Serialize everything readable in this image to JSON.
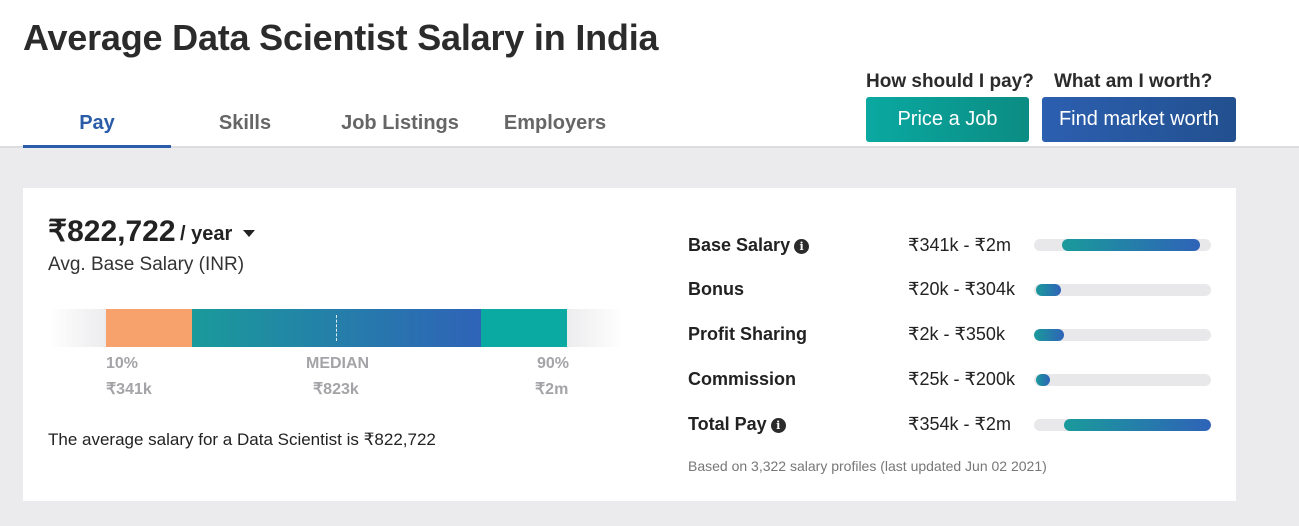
{
  "page": {
    "title": "Average Data Scientist Salary in India"
  },
  "tabs": [
    {
      "label": "Pay",
      "active": true
    },
    {
      "label": "Skills",
      "active": false
    },
    {
      "label": "Job Listings",
      "active": false
    },
    {
      "label": "Employers",
      "active": false
    }
  ],
  "cta": {
    "price_job": {
      "question": "How should I pay?",
      "button": "Price a Job"
    },
    "market_worth": {
      "question": "What am I worth?",
      "button": "Find market worth"
    }
  },
  "salary": {
    "average": "₹822,722",
    "period": "/ year",
    "label": "Avg. Base Salary (INR)",
    "percentiles": [
      {
        "label": "10%",
        "value": "₹341k"
      },
      {
        "label": "MEDIAN",
        "value": "₹823k"
      },
      {
        "label": "90%",
        "value": "₹2m"
      }
    ],
    "summary": "The average salary for a Data Scientist is ₹822,722"
  },
  "breakdown": {
    "rows": [
      {
        "label": "Base Salary",
        "info": true,
        "range": "₹341k - ₹2m",
        "bar_start": 0.16,
        "bar_end": 0.94
      },
      {
        "label": "Bonus",
        "info": false,
        "range": "₹20k - ₹304k",
        "bar_start": 0.01,
        "bar_end": 0.15
      },
      {
        "label": "Profit Sharing",
        "info": false,
        "range": "₹2k - ₹350k",
        "bar_start": 0.0,
        "bar_end": 0.17
      },
      {
        "label": "Commission",
        "info": false,
        "range": "₹25k - ₹200k",
        "bar_start": 0.01,
        "bar_end": 0.09
      },
      {
        "label": "Total Pay",
        "info": true,
        "range": "₹354k - ₹2m",
        "bar_start": 0.17,
        "bar_end": 1.0
      }
    ],
    "footnote": "Based on 3,322 salary profiles (last updated Jun 02 2021)"
  },
  "colors": {
    "accent_blue": "#2a5ca8",
    "teal": "#0aa9a1",
    "low_percentile": "#f7a26c"
  }
}
